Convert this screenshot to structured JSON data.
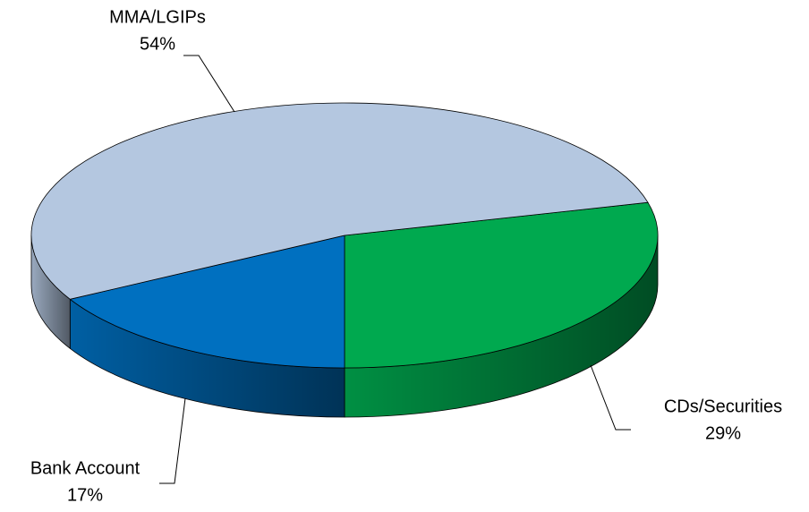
{
  "chart_data": {
    "type": "pie3d",
    "categories": [
      "CDs/Securities",
      "Bank Account",
      "MMA/LGIPs"
    ],
    "values": [
      29,
      17,
      54
    ],
    "value_labels": [
      "29%",
      "17%",
      "54%"
    ],
    "colors": [
      "#00a94f",
      "#0070c0",
      "#b4c7e0"
    ]
  }
}
